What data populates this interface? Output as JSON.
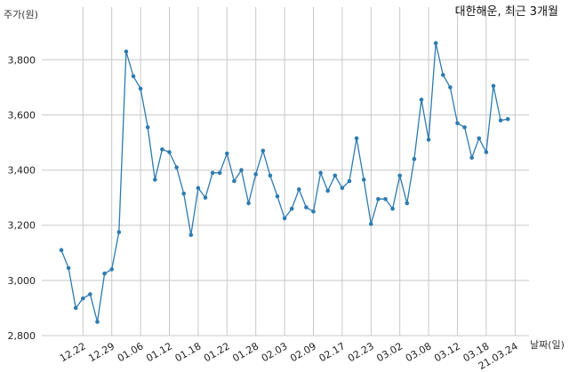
{
  "chart_data": {
    "type": "line",
    "title": "대한해운, 최근 3개월",
    "ylabel": "주가(원)",
    "xlabel": "날짜(일)",
    "ylim": [
      2800,
      3920
    ],
    "yticks": [
      2800,
      3000,
      3200,
      3400,
      3600,
      3800
    ],
    "ytick_labels": [
      "2,800",
      "3,000",
      "3,200",
      "3,400",
      "3,600",
      "3,800"
    ],
    "xtick_labels": [
      "12.22",
      "12.29",
      "01.06",
      "01.12",
      "01.18",
      "01.22",
      "01.28",
      "02.03",
      "02.09",
      "02.17",
      "02.23",
      "03.02",
      "03.08",
      "03.12",
      "03.18",
      "21.03.24"
    ],
    "xtick_index": [
      3,
      7,
      11,
      15,
      19,
      23,
      27,
      31,
      35,
      39,
      43,
      47,
      51,
      55,
      59,
      63
    ],
    "grid": true,
    "color": "#2e7bb0",
    "values": [
      3110,
      3045,
      2900,
      2935,
      2950,
      2850,
      3025,
      3040,
      3175,
      3830,
      3740,
      3695,
      3555,
      3365,
      3475,
      3465,
      3410,
      3315,
      3165,
      3335,
      3300,
      3390,
      3390,
      3460,
      3360,
      3400,
      3280,
      3385,
      3470,
      3380,
      3305,
      3225,
      3260,
      3330,
      3265,
      3250,
      3390,
      3325,
      3380,
      3335,
      3360,
      3515,
      3365,
      3205,
      3295,
      3295,
      3260,
      3380,
      3280,
      3440,
      3655,
      3510,
      3860,
      3745,
      3700,
      3570,
      3555,
      3445,
      3515,
      3465,
      3705,
      3580,
      3585
    ]
  }
}
